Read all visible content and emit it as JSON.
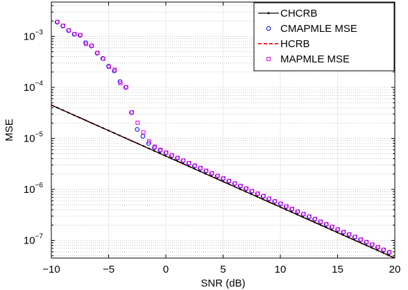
{
  "chart_data": {
    "type": "scatter",
    "title": "",
    "xlabel": "SNR (dB)",
    "ylabel": "MSE",
    "xlim": [
      -10,
      20
    ],
    "ylim": [
      4.5e-08,
      0.0047
    ],
    "yscale": "log",
    "grid": true,
    "legend_position": "top-right",
    "x_ticks": [
      "−10",
      "−5",
      "0",
      "5",
      "10",
      "15",
      "20"
    ],
    "y_ticks": [
      {
        "base": "10",
        "exp": "−7"
      },
      {
        "base": "10",
        "exp": "−6"
      },
      {
        "base": "10",
        "exp": "−5"
      },
      {
        "base": "10",
        "exp": "−4"
      },
      {
        "base": "10",
        "exp": "−3"
      }
    ],
    "series": [
      {
        "name": "CHCRB",
        "style": "line-dots",
        "color": "#000000",
        "x": [
          -10,
          20
        ],
        "y": [
          4.5e-05,
          4.5e-08
        ]
      },
      {
        "name": "CMAPMLE MSE",
        "style": "circle",
        "color": "#0000ff",
        "x": [
          -9.5,
          -9,
          -8.5,
          -8,
          -7.5,
          -7,
          -6.5,
          -6,
          -5.5,
          -5,
          -4.5,
          -4,
          -3.5,
          -3,
          -2.5,
          -2,
          -1.5,
          -1,
          -0.5,
          0,
          0.5,
          1,
          1.5,
          2,
          2.5,
          3,
          3.5,
          4,
          4.5,
          5,
          5.5,
          6,
          6.5,
          7,
          7.5,
          8,
          8.5,
          9,
          9.5,
          10,
          10.5,
          11,
          11.5,
          12,
          12.5,
          13,
          13.5,
          14,
          14.5,
          15,
          15.5,
          16,
          16.5,
          17,
          17.5,
          18,
          18.5,
          19,
          19.5
        ],
        "y": [
          0.0019,
          0.0016,
          0.0013,
          0.0011,
          0.00105,
          0.00075,
          0.00065,
          0.00047,
          0.00037,
          0.00026,
          0.00021,
          0.00013,
          0.0001,
          3.2e-05,
          1.5e-05,
          1.1e-05,
          8e-06,
          6.6e-06,
          5.8e-06,
          5.2e-06,
          4.6e-06,
          4.1e-06,
          3.65e-06,
          3.25e-06,
          2.9e-06,
          2.6e-06,
          2.3e-06,
          2.05e-06,
          1.83e-06,
          1.63e-06,
          1.45e-06,
          1.3e-06,
          1.16e-06,
          1.03e-06,
          9.2e-07,
          8.2e-07,
          7.3e-07,
          6.5e-07,
          5.8e-07,
          5.2e-07,
          4.6e-07,
          4.1e-07,
          3.65e-07,
          3.25e-07,
          2.9e-07,
          2.6e-07,
          2.3e-07,
          2.05e-07,
          1.83e-07,
          1.63e-07,
          1.45e-07,
          1.3e-07,
          1.16e-07,
          1.03e-07,
          9.2e-08,
          8.2e-08,
          7.3e-08,
          6.5e-08,
          5.8e-08
        ]
      },
      {
        "name": "HCRB",
        "style": "dashed",
        "color": "#ff0000",
        "x": [
          -10,
          20
        ],
        "y": [
          4.5e-05,
          4.5e-08
        ]
      },
      {
        "name": "MAPMLE MSE",
        "style": "square",
        "color": "#e000e0",
        "x": [
          -9.5,
          -9,
          -8.5,
          -8,
          -7.5,
          -7,
          -6.5,
          -6,
          -5.5,
          -5,
          -4.5,
          -4,
          -3.5,
          -3,
          -2.5,
          -2,
          -1.5,
          -1,
          -0.5,
          0,
          0.5,
          1,
          1.5,
          2,
          2.5,
          3,
          3.5,
          4,
          4.5,
          5,
          5.5,
          6,
          6.5,
          7,
          7.5,
          8,
          8.5,
          9,
          9.5,
          10,
          10.5,
          11,
          11.5,
          12,
          12.5,
          13,
          13.5,
          14,
          14.5,
          15,
          15.5,
          16,
          16.5,
          17,
          17.5,
          18,
          18.5,
          19,
          19.5
        ],
        "y": [
          0.0019,
          0.0016,
          0.0013,
          0.0011,
          0.00105,
          0.0007,
          0.00065,
          0.00047,
          0.00036,
          0.00025,
          0.00022,
          0.00012,
          0.0001,
          3.2e-05,
          2e-05,
          1.3e-05,
          8.6e-06,
          6.8e-06,
          5.9e-06,
          5.2e-06,
          4.6e-06,
          4.1e-06,
          3.65e-06,
          3.25e-06,
          2.9e-06,
          2.6e-06,
          2.3e-06,
          2.05e-06,
          1.83e-06,
          1.63e-06,
          1.45e-06,
          1.3e-06,
          1.16e-06,
          1.03e-06,
          9.2e-07,
          8.2e-07,
          7.3e-07,
          6.5e-07,
          5.8e-07,
          5.2e-07,
          4.6e-07,
          4.1e-07,
          3.65e-07,
          3.25e-07,
          2.9e-07,
          2.6e-07,
          2.3e-07,
          2.05e-07,
          1.83e-07,
          1.63e-07,
          1.45e-07,
          1.3e-07,
          1.16e-07,
          1.03e-07,
          9.2e-08,
          8.2e-08,
          7.3e-08,
          6.5e-08,
          5.8e-08
        ]
      }
    ]
  }
}
